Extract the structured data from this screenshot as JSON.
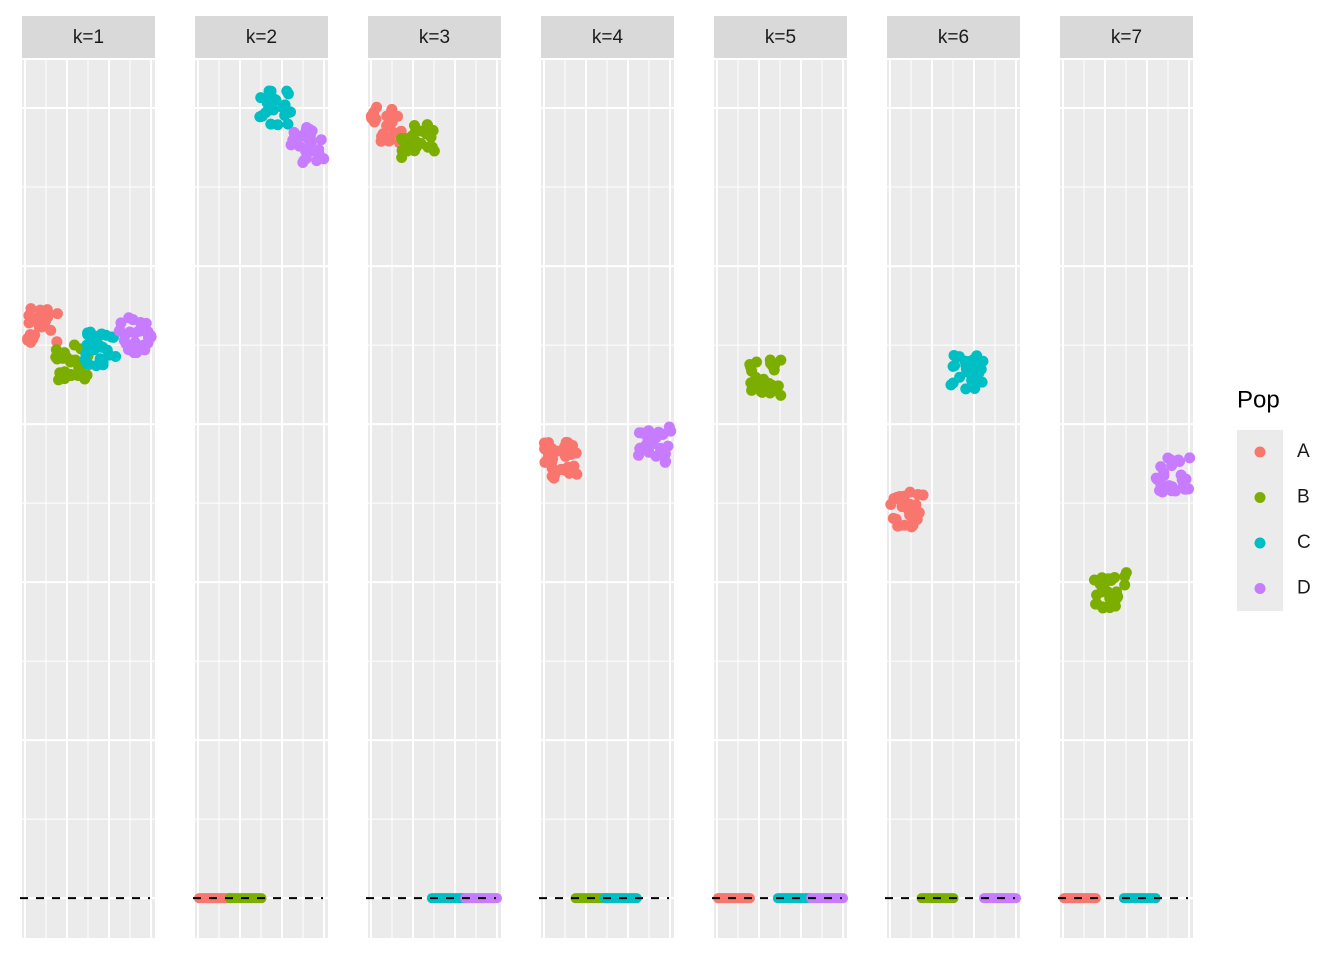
{
  "chart_data": {
    "type": "scatter",
    "facets": [
      {
        "title": "k=1",
        "values": [
          0.907,
          0.848,
          0.867,
          0.891
        ]
      },
      {
        "title": "k=2",
        "values": [
          0,
          0,
          1.25,
          1.191
        ]
      },
      {
        "title": "k=3",
        "values": [
          1.223,
          1.199,
          0,
          0
        ]
      },
      {
        "title": "k=4",
        "values": [
          0.693,
          0,
          0,
          0.717
        ]
      },
      {
        "title": "k=5",
        "values": [
          0,
          0.823,
          0,
          0
        ]
      },
      {
        "title": "k=6",
        "values": [
          0.614,
          0,
          0.831,
          0
        ]
      },
      {
        "title": "k=7",
        "values": [
          0,
          0.487,
          0,
          0.669
        ]
      }
    ],
    "legend_title": "Pop",
    "series": [
      {
        "name": "A",
        "color": "#F8766D"
      },
      {
        "name": "B",
        "color": "#7CAE00"
      },
      {
        "name": "C",
        "color": "#00BFC4"
      },
      {
        "name": "D",
        "color": "#C77CFF"
      }
    ],
    "ylim": [
      -0.063,
      1.326
    ],
    "ygrid": [
      0,
      0.125,
      0.25,
      0.375,
      0.5,
      0.625,
      0.75,
      0.875,
      1,
      1.125,
      1.25
    ],
    "hline": 0,
    "grid": true
  }
}
